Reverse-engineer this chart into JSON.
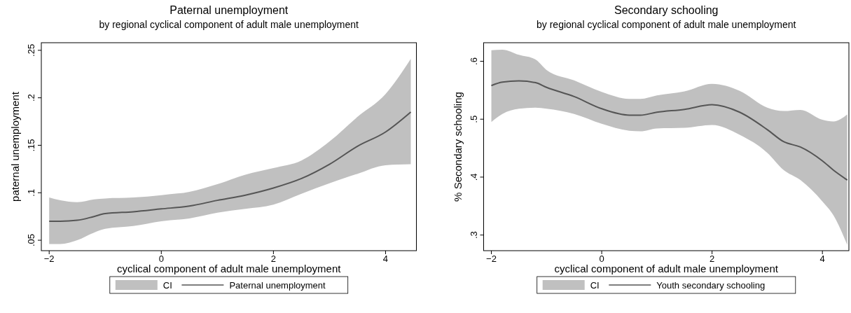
{
  "chart_data": [
    {
      "type": "line",
      "title": "Paternal unemployment",
      "subtitle": "by regional cyclical component of adult male unemployment",
      "xlabel": "cyclical component of adult male unemployment",
      "ylabel": "paternal unemployment",
      "annotations": [
        "CI"
      ],
      "xlim": [
        -2.14,
        4.55
      ],
      "ylim": [
        0.039,
        0.258
      ],
      "xticks": [
        {
          "value": -2,
          "label": "−2"
        },
        0,
        2,
        4
      ],
      "yticks": [
        {
          "value": 0.05,
          "label": ".05"
        },
        {
          "value": 0.1,
          "label": ".1"
        },
        {
          "value": 0.15,
          "label": ".15"
        },
        {
          "value": 0.2,
          "label": ".2"
        },
        {
          "value": 0.25,
          "label": ".25"
        }
      ],
      "grid": false,
      "legend": "bottom",
      "series": [
        {
          "name": "Paternal unemployment",
          "type": "line",
          "color": "#555555",
          "x": [
            -2,
            -1.8,
            -1.5,
            -1.2,
            -1,
            -0.5,
            0,
            0.5,
            1,
            1.5,
            2,
            2.5,
            3,
            3.5,
            4,
            4.45
          ],
          "values": [
            0.07,
            0.07,
            0.071,
            0.075,
            0.078,
            0.08,
            0.083,
            0.086,
            0.092,
            0.0975,
            0.105,
            0.115,
            0.13,
            0.149,
            0.164,
            0.185
          ],
          "lower": [
            0.046,
            0.046,
            0.05,
            0.058,
            0.062,
            0.065,
            0.07,
            0.073,
            0.079,
            0.083,
            0.0875,
            0.099,
            0.11,
            0.12,
            0.129,
            0.13
          ],
          "upper": [
            0.095,
            0.092,
            0.09,
            0.093,
            0.094,
            0.095,
            0.0975,
            0.101,
            0.109,
            0.119,
            0.126,
            0.134,
            0.154,
            0.18,
            0.204,
            0.241
          ]
        }
      ]
    },
    {
      "type": "line",
      "title": "Secondary schooling",
      "subtitle": "by regional cyclical component of adult male unemployment",
      "xlabel": "cyclical component of adult male unemployment",
      "ylabel": "% Secondary schooling",
      "annotations": [
        "CI"
      ],
      "xlim": [
        -2.14,
        4.48
      ],
      "ylim": [
        0.273,
        0.632
      ],
      "xticks": [
        {
          "value": -2,
          "label": "−2"
        },
        0,
        2,
        4
      ],
      "yticks": [
        {
          "value": 0.3,
          "label": ".3"
        },
        {
          "value": 0.4,
          "label": ".4"
        },
        {
          "value": 0.5,
          "label": ".5"
        },
        {
          "value": 0.6,
          "label": ".6"
        }
      ],
      "grid": false,
      "legend": "bottom",
      "series": [
        {
          "name": "Youth secondary schooling",
          "type": "line",
          "color": "#555555",
          "x": [
            -2,
            -1.8,
            -1.5,
            -1.2,
            -1,
            -0.5,
            0,
            0.5,
            0.7,
            1,
            1.5,
            2,
            2.5,
            3,
            3.3,
            3.6,
            4,
            4.2,
            4.45
          ],
          "values": [
            0.558,
            0.564,
            0.566,
            0.563,
            0.555,
            0.539,
            0.518,
            0.507,
            0.507,
            0.512,
            0.517,
            0.525,
            0.512,
            0.482,
            0.461,
            0.452,
            0.428,
            0.412,
            0.395
          ],
          "lower": [
            0.495,
            0.509,
            0.518,
            0.52,
            0.518,
            0.509,
            0.492,
            0.48,
            0.479,
            0.484,
            0.485,
            0.49,
            0.473,
            0.442,
            0.412,
            0.395,
            0.358,
            0.334,
            0.283
          ],
          "upper": [
            0.619,
            0.62,
            0.611,
            0.603,
            0.585,
            0.567,
            0.547,
            0.535,
            0.535,
            0.541,
            0.548,
            0.561,
            0.549,
            0.52,
            0.514,
            0.516,
            0.499,
            0.496,
            0.508
          ]
        }
      ]
    }
  ]
}
